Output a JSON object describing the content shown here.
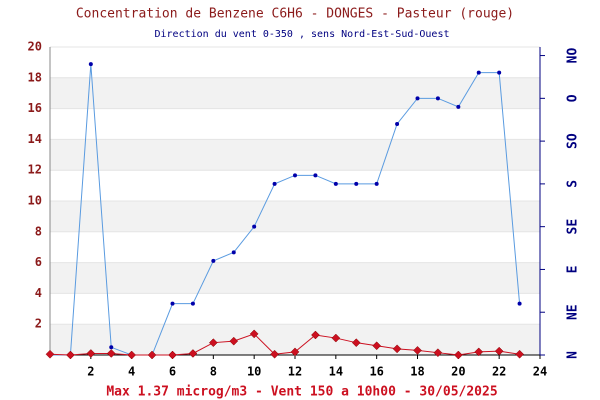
{
  "chart_data": {
    "type": "line",
    "title": "Concentration de Benzene C6H6  -   DONGES - Pasteur (rouge)",
    "subtitle": "Direction du vent 0-350 , sens Nord-Est-Sud-Ouest",
    "footer": "Max 1.37 microg/m3 - Vent 150  a 10h00 - 30/05/2025",
    "x": [
      0,
      1,
      2,
      3,
      4,
      5,
      6,
      7,
      8,
      9,
      10,
      11,
      12,
      13,
      14,
      15,
      16,
      17,
      18,
      19,
      20,
      21,
      22,
      23
    ],
    "series": [
      {
        "name": "Vent",
        "color": "#5a9be0",
        "axis": "y2",
        "marker": "circle",
        "values": [
          0,
          0,
          340,
          9,
          0,
          0,
          60,
          60,
          110,
          120,
          150,
          200,
          210,
          210,
          200,
          200,
          200,
          270,
          300,
          300,
          290,
          330,
          330,
          60
        ]
      },
      {
        "name": "Benzene",
        "color": "#cc1020",
        "axis": "y",
        "marker": "diamond",
        "values": [
          0.05,
          0,
          0.1,
          0.1,
          0,
          0,
          0,
          0.1,
          0.8,
          0.9,
          1.37,
          0.05,
          0.2,
          1.3,
          1.1,
          0.8,
          0.6,
          0.4,
          0.3,
          0.15,
          0,
          0.2,
          0.25,
          0.05
        ]
      }
    ],
    "xlim": [
      0,
      24
    ],
    "xticks": [
      2,
      4,
      6,
      8,
      10,
      12,
      14,
      16,
      18,
      20,
      22,
      24
    ],
    "ylim": [
      0,
      20
    ],
    "yticks": [
      2,
      4,
      6,
      8,
      10,
      12,
      14,
      16,
      18,
      20
    ],
    "y2lim": [
      0,
      360
    ],
    "y2ticks": [
      {
        "value": 0,
        "label": "N"
      },
      {
        "value": 50,
        "label": "NE"
      },
      {
        "value": 100,
        "label": "E"
      },
      {
        "value": 150,
        "label": "SE"
      },
      {
        "value": 200,
        "label": "S"
      },
      {
        "value": 250,
        "label": "SO"
      },
      {
        "value": 300,
        "label": "O"
      },
      {
        "value": 350,
        "label": "NO"
      }
    ],
    "bands": true
  }
}
